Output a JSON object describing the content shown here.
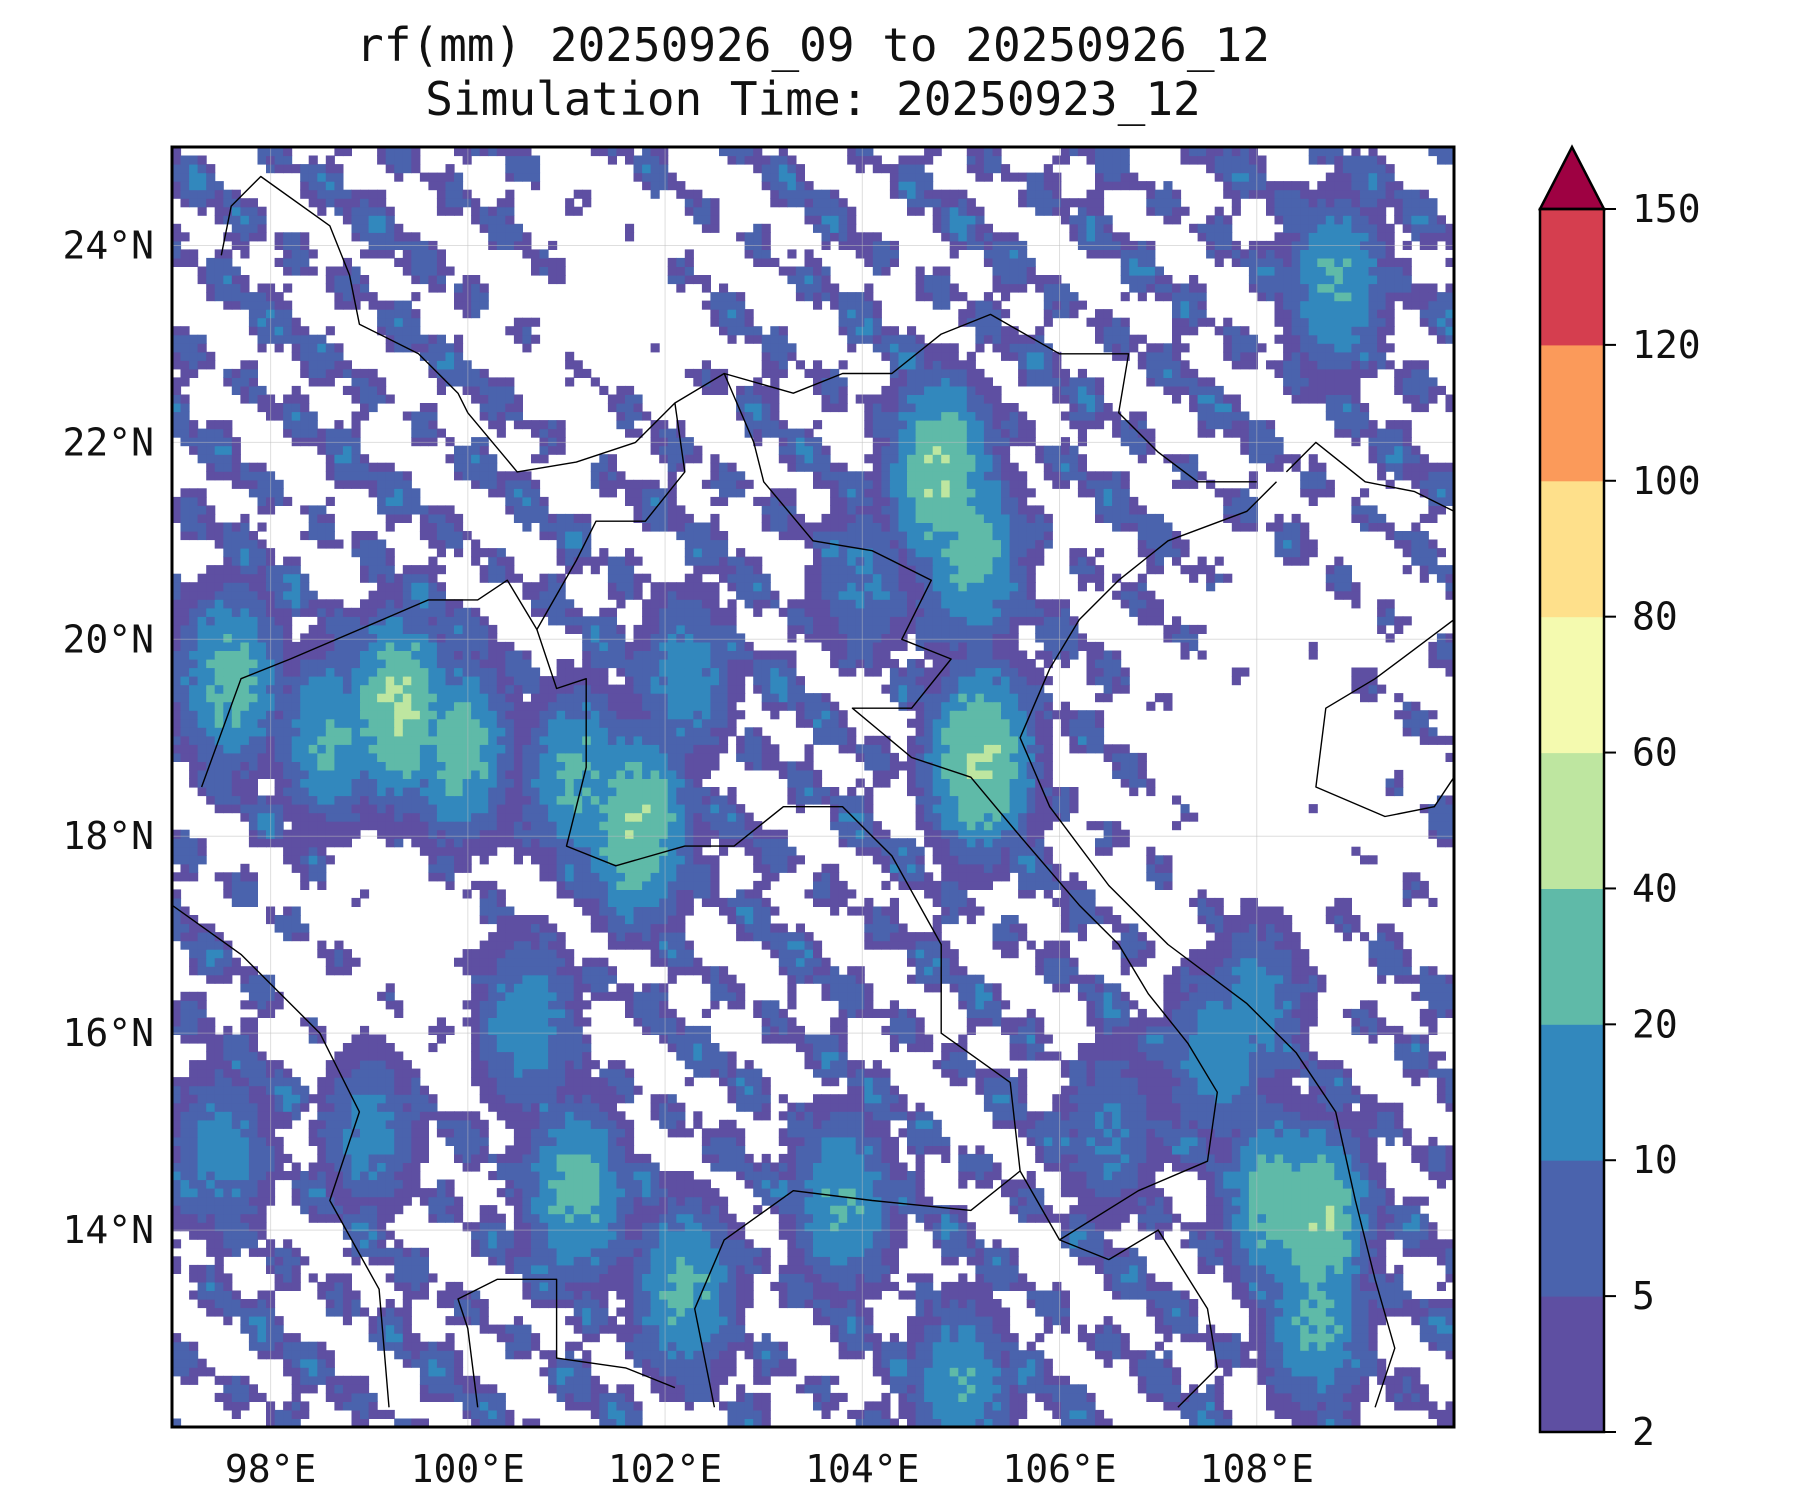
{
  "title": {
    "line1": "rf(mm) 20250926_09 to 20250926_12",
    "line2": "Simulation Time: 20250923_12"
  },
  "map": {
    "lon_range": [
      97,
      110
    ],
    "lat_range": [
      12,
      25
    ],
    "lon_ticks": [
      {
        "value": 98,
        "label": "98°E"
      },
      {
        "value": 100,
        "label": "100°E"
      },
      {
        "value": 102,
        "label": "102°E"
      },
      {
        "value": 104,
        "label": "104°E"
      },
      {
        "value": 106,
        "label": "106°E"
      },
      {
        "value": 108,
        "label": "108°E"
      }
    ],
    "lat_ticks": [
      {
        "value": 14,
        "label": "14°N"
      },
      {
        "value": 16,
        "label": "16°N"
      },
      {
        "value": 18,
        "label": "18°N"
      },
      {
        "value": 20,
        "label": "20°N"
      },
      {
        "value": 22,
        "label": "22°N"
      },
      {
        "value": 24,
        "label": "24°N"
      }
    ],
    "gridlines": true,
    "borders": [
      [
        [
          97.0,
          17.3
        ],
        [
          97.7,
          16.8
        ],
        [
          98.5,
          16.0
        ],
        [
          98.9,
          15.2
        ],
        [
          98.6,
          14.3
        ],
        [
          99.1,
          13.4
        ],
        [
          99.2,
          12.2
        ]
      ],
      [
        [
          97.3,
          18.5
        ],
        [
          97.7,
          19.6
        ],
        [
          98.2,
          19.8
        ],
        [
          98.9,
          20.1
        ],
        [
          99.6,
          20.4
        ],
        [
          100.1,
          20.4
        ],
        [
          100.4,
          20.6
        ],
        [
          100.7,
          20.1
        ],
        [
          100.9,
          19.5
        ],
        [
          101.2,
          19.6
        ],
        [
          101.2,
          18.7
        ],
        [
          101.0,
          17.9
        ],
        [
          101.5,
          17.7
        ],
        [
          102.2,
          17.9
        ],
        [
          102.7,
          17.9
        ],
        [
          103.2,
          18.3
        ],
        [
          103.8,
          18.3
        ],
        [
          104.3,
          17.8
        ],
        [
          104.8,
          16.9
        ],
        [
          104.8,
          16.0
        ],
        [
          105.5,
          15.5
        ],
        [
          105.6,
          14.6
        ],
        [
          105.1,
          14.2
        ],
        [
          104.1,
          14.3
        ],
        [
          103.3,
          14.4
        ],
        [
          102.6,
          13.9
        ],
        [
          102.3,
          13.2
        ],
        [
          102.5,
          12.2
        ]
      ],
      [
        [
          100.0,
          22.3
        ],
        [
          100.5,
          21.7
        ],
        [
          101.1,
          21.8
        ],
        [
          101.7,
          22.0
        ],
        [
          102.1,
          22.4
        ],
        [
          102.6,
          22.7
        ],
        [
          103.3,
          22.5
        ],
        [
          103.8,
          22.7
        ],
        [
          104.3,
          22.7
        ],
        [
          104.8,
          23.1
        ],
        [
          105.3,
          23.3
        ],
        [
          106.0,
          22.9
        ],
        [
          106.7,
          22.9
        ],
        [
          106.6,
          22.3
        ],
        [
          107.0,
          21.9
        ],
        [
          107.4,
          21.6
        ],
        [
          108.0,
          21.6
        ]
      ],
      [
        [
          102.1,
          22.4
        ],
        [
          102.2,
          21.7
        ],
        [
          101.8,
          21.2
        ],
        [
          101.3,
          21.2
        ],
        [
          101.1,
          20.8
        ],
        [
          100.7,
          20.1
        ]
      ],
      [
        [
          102.6,
          22.7
        ],
        [
          102.9,
          22.0
        ],
        [
          103.0,
          21.6
        ],
        [
          103.5,
          21.0
        ],
        [
          104.1,
          20.9
        ],
        [
          104.7,
          20.6
        ],
        [
          104.4,
          20.0
        ],
        [
          104.9,
          19.8
        ],
        [
          104.5,
          19.3
        ],
        [
          103.9,
          19.3
        ],
        [
          104.5,
          18.8
        ],
        [
          105.1,
          18.6
        ],
        [
          105.6,
          18.0
        ],
        [
          106.2,
          17.3
        ],
        [
          106.6,
          16.9
        ],
        [
          106.9,
          16.4
        ],
        [
          107.3,
          15.9
        ],
        [
          107.6,
          15.4
        ],
        [
          107.5,
          14.7
        ],
        [
          106.8,
          14.4
        ],
        [
          106.0,
          13.9
        ],
        [
          105.6,
          14.6
        ]
      ],
      [
        [
          106.0,
          13.9
        ],
        [
          106.5,
          13.7
        ],
        [
          107.0,
          14.0
        ],
        [
          107.5,
          13.2
        ],
        [
          107.6,
          12.6
        ],
        [
          107.2,
          12.2
        ]
      ],
      [
        [
          108.2,
          21.6
        ],
        [
          107.9,
          21.3
        ],
        [
          107.1,
          21.0
        ],
        [
          106.6,
          20.6
        ],
        [
          106.2,
          20.2
        ],
        [
          105.9,
          19.7
        ],
        [
          105.6,
          19.0
        ],
        [
          105.9,
          18.3
        ],
        [
          106.5,
          17.5
        ],
        [
          107.1,
          16.9
        ],
        [
          107.9,
          16.3
        ],
        [
          108.4,
          15.8
        ],
        [
          108.8,
          15.2
        ],
        [
          109.0,
          14.3
        ],
        [
          109.2,
          13.5
        ],
        [
          109.4,
          12.8
        ],
        [
          109.2,
          12.2
        ]
      ],
      [
        [
          100.1,
          12.2
        ],
        [
          100.0,
          13.0
        ],
        [
          99.9,
          13.3
        ],
        [
          100.3,
          13.5
        ],
        [
          100.9,
          13.5
        ],
        [
          100.9,
          12.7
        ],
        [
          101.6,
          12.6
        ],
        [
          102.1,
          12.4
        ]
      ],
      [
        [
          97.5,
          23.9
        ],
        [
          97.6,
          24.4
        ],
        [
          97.9,
          24.7
        ],
        [
          98.6,
          24.2
        ],
        [
          98.8,
          23.7
        ],
        [
          98.9,
          23.2
        ],
        [
          99.5,
          22.9
        ],
        [
          99.9,
          22.5
        ],
        [
          100.0,
          22.3
        ]
      ],
      [
        [
          108.3,
          21.7
        ],
        [
          108.6,
          22.0
        ],
        [
          109.1,
          21.6
        ],
        [
          109.6,
          21.5
        ],
        [
          110.0,
          21.3
        ]
      ],
      [
        [
          110.0,
          20.2
        ],
        [
          109.6,
          19.9
        ],
        [
          109.2,
          19.6
        ],
        [
          108.7,
          19.3
        ],
        [
          108.6,
          18.5
        ],
        [
          109.3,
          18.2
        ],
        [
          109.8,
          18.3
        ],
        [
          110.0,
          18.6
        ]
      ]
    ]
  },
  "colorbar": {
    "levels": [
      2,
      5,
      10,
      20,
      40,
      60,
      80,
      100,
      120,
      150
    ],
    "colors": [
      "#5e4fa2",
      "#4a63ad",
      "#3288bd",
      "#5fbaa8",
      "#bee6a0",
      "#f4faaf",
      "#fee08b",
      "#fb9a5a",
      "#d53e4f",
      "#9e0142"
    ],
    "extend": "max"
  },
  "rain_clusters": [
    {
      "lon": 105.1,
      "lat": 20.9,
      "value": 30
    },
    {
      "lon": 104.8,
      "lat": 21.7,
      "value": 42
    },
    {
      "lon": 105.2,
      "lat": 18.8,
      "value": 45
    },
    {
      "lon": 99.3,
      "lat": 19.3,
      "value": 44
    },
    {
      "lon": 99.9,
      "lat": 18.9,
      "value": 30
    },
    {
      "lon": 101.7,
      "lat": 18.1,
      "value": 42
    },
    {
      "lon": 101.1,
      "lat": 18.6,
      "value": 25
    },
    {
      "lon": 98.6,
      "lat": 19.0,
      "value": 22
    },
    {
      "lon": 97.6,
      "lat": 19.6,
      "value": 28
    },
    {
      "lon": 108.6,
      "lat": 13.1,
      "value": 25
    },
    {
      "lon": 108.2,
      "lat": 14.3,
      "value": 30
    },
    {
      "lon": 108.6,
      "lat": 14.1,
      "value": 42
    },
    {
      "lon": 108.8,
      "lat": 23.6,
      "value": 22
    },
    {
      "lon": 101.1,
      "lat": 14.4,
      "value": 28
    },
    {
      "lon": 102.2,
      "lat": 13.4,
      "value": 25
    },
    {
      "lon": 103.8,
      "lat": 14.3,
      "value": 22
    },
    {
      "lon": 107.6,
      "lat": 15.8,
      "value": 18
    },
    {
      "lon": 108.0,
      "lat": 16.3,
      "value": 15
    },
    {
      "lon": 100.6,
      "lat": 16.1,
      "value": 18
    },
    {
      "lon": 102.2,
      "lat": 19.6,
      "value": 16
    },
    {
      "lon": 105.0,
      "lat": 12.4,
      "value": 20
    },
    {
      "lon": 104.0,
      "lat": 20.6,
      "value": 12
    },
    {
      "lon": 106.5,
      "lat": 15.0,
      "value": 12
    },
    {
      "lon": 99.0,
      "lat": 15.0,
      "value": 14
    },
    {
      "lon": 97.5,
      "lat": 14.8,
      "value": 15
    }
  ]
}
